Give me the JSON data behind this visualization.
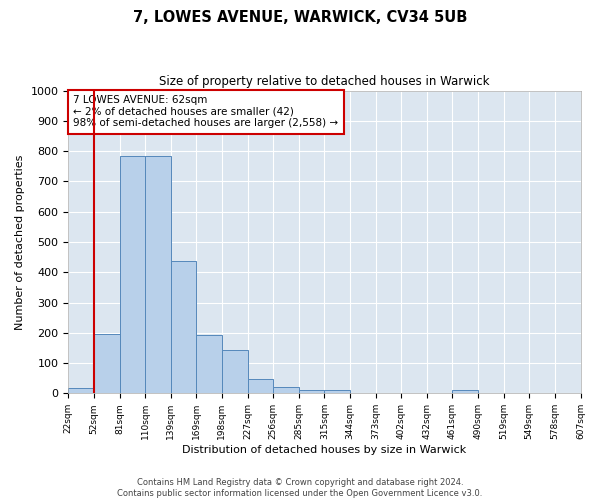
{
  "title": "7, LOWES AVENUE, WARWICK, CV34 5UB",
  "subtitle": "Size of property relative to detached houses in Warwick",
  "xlabel": "Distribution of detached houses by size in Warwick",
  "ylabel": "Number of detached properties",
  "bin_labels": [
    "22sqm",
    "52sqm",
    "81sqm",
    "110sqm",
    "139sqm",
    "169sqm",
    "198sqm",
    "227sqm",
    "256sqm",
    "285sqm",
    "315sqm",
    "344sqm",
    "373sqm",
    "402sqm",
    "432sqm",
    "461sqm",
    "490sqm",
    "519sqm",
    "549sqm",
    "578sqm",
    "607sqm"
  ],
  "bar_heights": [
    18,
    197,
    785,
    785,
    437,
    192,
    142,
    49,
    20,
    11,
    11,
    0,
    0,
    0,
    0,
    10,
    0,
    0,
    0,
    0
  ],
  "bar_color": "#b8d0ea",
  "bar_edge_color": "#5588bb",
  "property_line_x": 1,
  "property_line_color": "#cc0000",
  "annotation_line1": "7 LOWES AVENUE: 62sqm",
  "annotation_line2": "← 2% of detached houses are smaller (42)",
  "annotation_line3": "98% of semi-detached houses are larger (2,558) →",
  "annotation_box_color": "#ffffff",
  "annotation_box_edge_color": "#cc0000",
  "ylim": [
    0,
    1000
  ],
  "yticks": [
    0,
    100,
    200,
    300,
    400,
    500,
    600,
    700,
    800,
    900,
    1000
  ],
  "background_color": "#dce6f0",
  "grid_color": "#ffffff",
  "footer_line1": "Contains HM Land Registry data © Crown copyright and database right 2024.",
  "footer_line2": "Contains public sector information licensed under the Open Government Licence v3.0."
}
